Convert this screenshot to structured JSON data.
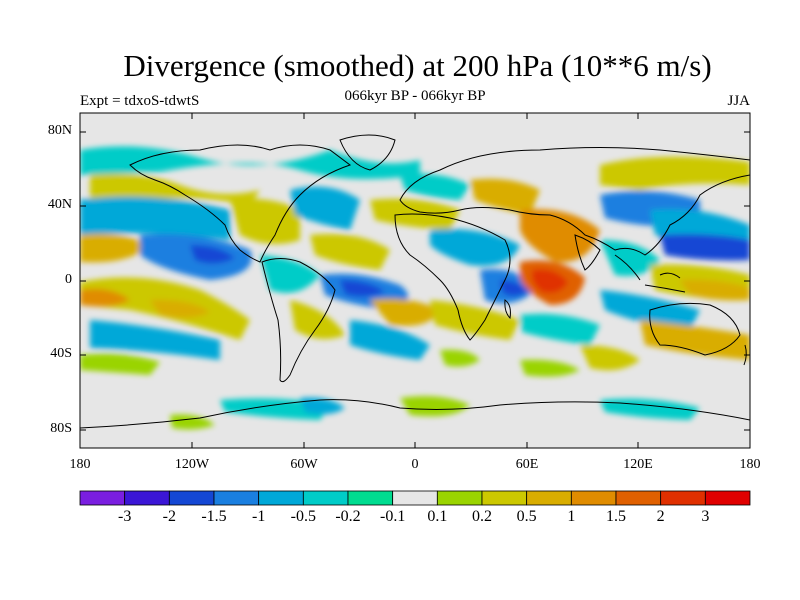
{
  "title": "Divergence (smoothed) at 200 hPa (10**6 m/s)",
  "subtitle": "066kyr BP - 066kyr BP",
  "left_label": "Expt = tdxoS-tdwtS",
  "right_label": "JJA",
  "lat_ticks": [
    "80N",
    "40N",
    "0",
    "40S",
    "80S"
  ],
  "lon_ticks": [
    "180",
    "120W",
    "60W",
    "0",
    "60E",
    "120E",
    "180"
  ],
  "colorbar": {
    "labels": [
      "-3",
      "-2",
      "-1.5",
      "-1",
      "-0.5",
      "-0.2",
      "-0.1",
      "0.1",
      "0.2",
      "0.5",
      "1",
      "1.5",
      "2",
      "3"
    ],
    "colors": [
      "#7a1ee0",
      "#3b16d6",
      "#1447d4",
      "#1a7fe0",
      "#00a8d8",
      "#00ccc8",
      "#00dc90",
      "#e6e6e6",
      "#9ad400",
      "#ccc800",
      "#d9ad00",
      "#e08c00",
      "#e06000",
      "#e03000",
      "#e00000"
    ]
  },
  "colors": {
    "land_outline": "#000000",
    "background": "#e6e6e6"
  }
}
